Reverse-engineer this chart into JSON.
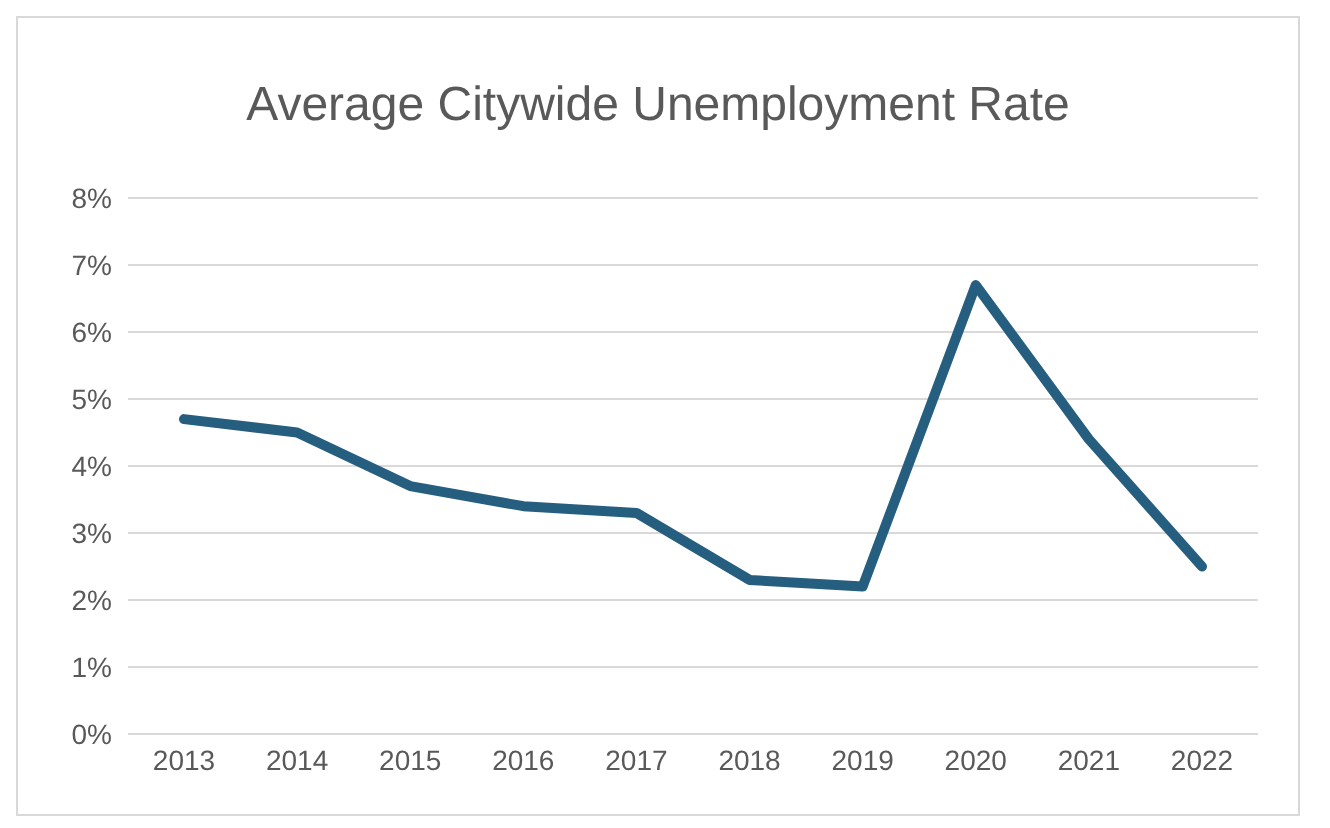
{
  "chart_data": {
    "type": "line",
    "title": "Average Citywide Unemployment Rate",
    "categories": [
      "2013",
      "2014",
      "2015",
      "2016",
      "2017",
      "2018",
      "2019",
      "2020",
      "2021",
      "2022"
    ],
    "series": [
      {
        "color": "#255e7e",
        "values": [
          4.7,
          4.5,
          3.7,
          3.4,
          3.3,
          2.3,
          2.2,
          6.7,
          4.4,
          2.5
        ]
      }
    ],
    "ylim": [
      0,
      8
    ],
    "yticks": [
      {
        "value": 0,
        "label": "0%"
      },
      {
        "value": 1,
        "label": "1%"
      },
      {
        "value": 2,
        "label": "2%"
      },
      {
        "value": 3,
        "label": "3%"
      },
      {
        "value": 4,
        "label": "4%"
      },
      {
        "value": 5,
        "label": "5%"
      },
      {
        "value": 6,
        "label": "6%"
      },
      {
        "value": 7,
        "label": "7%"
      },
      {
        "value": 8,
        "label": "8%"
      }
    ],
    "grid": "y",
    "marker": "none",
    "line_style": "solid",
    "legend": false
  }
}
